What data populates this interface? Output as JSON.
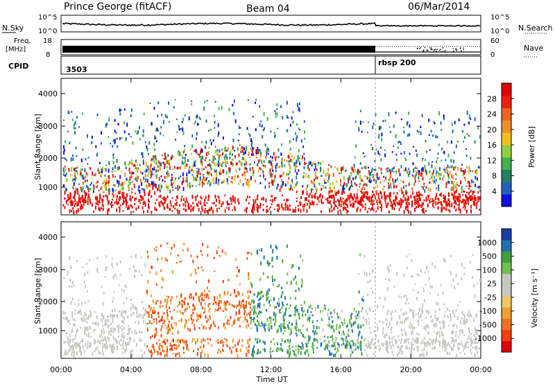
{
  "header": {
    "station": "Prince George (fitACF)",
    "beam": "Beam 04",
    "date": "06/Mar/2014"
  },
  "noise_panel": {
    "left_label": "N.Sky",
    "left_ticks": [
      "10^5",
      "10^0"
    ],
    "right_label": "N.Search",
    "right_ticks": [
      "10^5",
      "10^0"
    ]
  },
  "freq_panel": {
    "left_label_1": "Freq.",
    "left_label_2": "[MHz]",
    "left_ticks": [
      "18",
      "8"
    ],
    "right_label": "Nave",
    "right_ticks": [
      "60",
      "0"
    ]
  },
  "cpid_panel": {
    "label": "CPID",
    "program_1": "3503",
    "program_2": "rbsp 200"
  },
  "chart_data": [
    {
      "type": "heatmap",
      "name": "power",
      "ylabel": "Slant Range [km]",
      "yticks": [
        "4000",
        "3000",
        "2000",
        "1000"
      ],
      "xticks": [
        "00:00",
        "04:00",
        "08:00",
        "12:00",
        "16:00",
        "20:00",
        "00:00"
      ],
      "colorbar_label": "Power [dB]",
      "colorbar_ticks": [
        "28",
        "24",
        "20",
        "16",
        "12",
        "8",
        "4"
      ],
      "colorbar_colors": [
        "#1010e0",
        "#2060c0",
        "#208060",
        "#40b050",
        "#90d040",
        "#f0c020",
        "#f09020",
        "#f06020",
        "#e82010",
        "#e00000"
      ]
    },
    {
      "type": "heatmap",
      "name": "velocity",
      "ylabel": "Slant Range [km]",
      "yticks": [
        "4000",
        "3000",
        "2000",
        "1000"
      ],
      "xticks": [
        "00:00",
        "04:00",
        "08:00",
        "12:00",
        "16:00",
        "20:00",
        "00:00"
      ],
      "xlabel": "Time UT",
      "colorbar_label": "Velocity [m s⁻¹]",
      "colorbar_ticks": [
        "1000",
        "500",
        "100",
        "25",
        "-25",
        "-100",
        "-500",
        "-1000"
      ],
      "colorbar_colors": [
        "#e00000",
        "#f04010",
        "#f07020",
        "#f0a030",
        "#f0c860",
        "#c8c8c0",
        "#c8c8c0",
        "#70c050",
        "#40a040",
        "#2070b0",
        "#1a3ca8"
      ]
    }
  ]
}
